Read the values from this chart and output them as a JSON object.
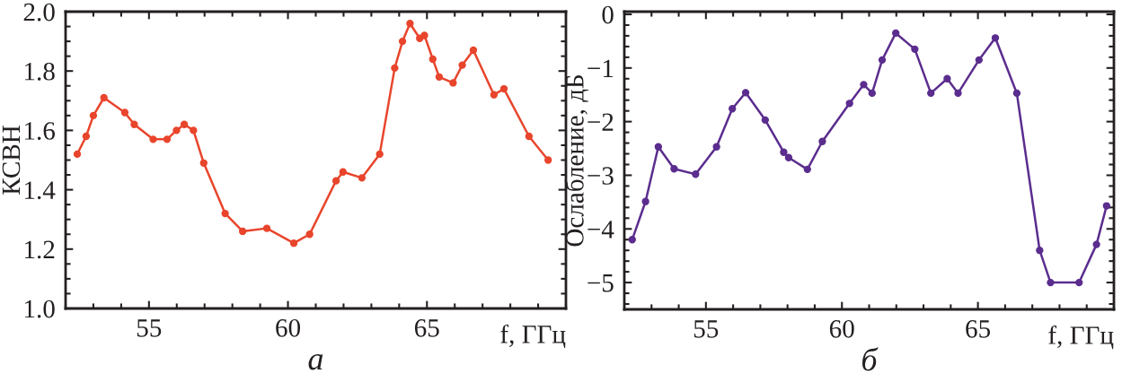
{
  "chart_data": [
    {
      "type": "line",
      "title": "а",
      "xlabel": "f, ГГц",
      "ylabel": "КСВН",
      "marker": "circle",
      "line_style": "solid",
      "grid": false,
      "legend": false,
      "xlim": [
        52,
        70
      ],
      "xticks": [
        55,
        60,
        65
      ],
      "ylim": [
        1.0,
        2.0
      ],
      "yticks": [
        {
          "value": 1.0,
          "label": "1.0"
        },
        {
          "value": 1.2,
          "label": "1.2"
        },
        {
          "value": 1.4,
          "label": "1.4"
        },
        {
          "value": 1.6,
          "label": "1.6"
        },
        {
          "value": 1.8,
          "label": "1.8"
        },
        {
          "value": 2.0,
          "label": "2.0"
        }
      ],
      "series": [
        {
          "color": "#e8452c",
          "x": [
            52.42,
            52.74,
            53.0,
            53.38,
            54.13,
            54.47,
            55.15,
            55.65,
            55.99,
            56.27,
            56.6,
            56.97,
            57.74,
            58.37,
            59.24,
            60.21,
            60.78,
            61.73,
            61.98,
            62.66,
            63.3,
            63.84,
            64.12,
            64.39,
            64.74,
            64.91,
            65.21,
            65.44,
            65.94,
            66.27,
            66.67,
            67.41,
            67.77,
            68.67,
            69.36
          ],
          "values": [
            1.52,
            1.58,
            1.65,
            1.71,
            1.66,
            1.62,
            1.57,
            1.57,
            1.6,
            1.62,
            1.6,
            1.49,
            1.32,
            1.26,
            1.27,
            1.22,
            1.25,
            1.43,
            1.46,
            1.44,
            1.52,
            1.81,
            1.9,
            1.96,
            1.91,
            1.92,
            1.84,
            1.78,
            1.76,
            1.82,
            1.87,
            1.72,
            1.74,
            1.58,
            1.5
          ]
        }
      ]
    },
    {
      "type": "line",
      "title": "б",
      "xlabel": "f, ГГц",
      "ylabel": "Ослабление, дБ",
      "marker": "circle",
      "line_style": "solid",
      "grid": false,
      "legend": false,
      "xlim": [
        52,
        70
      ],
      "xticks": [
        55,
        60,
        65
      ],
      "ylim": [
        -5.5,
        0.05
      ],
      "yticks": [
        {
          "value": -5,
          "label": "−5"
        },
        {
          "value": -4,
          "label": "−4"
        },
        {
          "value": -3,
          "label": "−3"
        },
        {
          "value": -2,
          "label": "−2"
        },
        {
          "value": -1,
          "label": "−1"
        },
        {
          "value": 0,
          "label": "0"
        }
      ],
      "series": [
        {
          "color": "#5b2d8e",
          "x": [
            52.29,
            52.78,
            53.25,
            53.83,
            54.62,
            55.39,
            55.97,
            56.46,
            57.18,
            57.86,
            58.04,
            58.73,
            59.28,
            60.28,
            60.8,
            61.11,
            61.48,
            61.98,
            62.68,
            63.27,
            63.87,
            64.27,
            65.04,
            65.64,
            66.43,
            67.27,
            67.67,
            68.72,
            69.36,
            69.73
          ],
          "values": [
            -4.2,
            -3.49,
            -2.47,
            -2.88,
            -2.98,
            -2.47,
            -1.76,
            -1.46,
            -1.97,
            -2.57,
            -2.67,
            -2.89,
            -2.37,
            -1.66,
            -1.31,
            -1.47,
            -0.85,
            -0.35,
            -0.65,
            -1.47,
            -1.2,
            -1.47,
            -0.85,
            -0.44,
            -1.47,
            -4.4,
            -5.0,
            -5.0,
            -4.29,
            -3.57
          ]
        }
      ]
    }
  ]
}
